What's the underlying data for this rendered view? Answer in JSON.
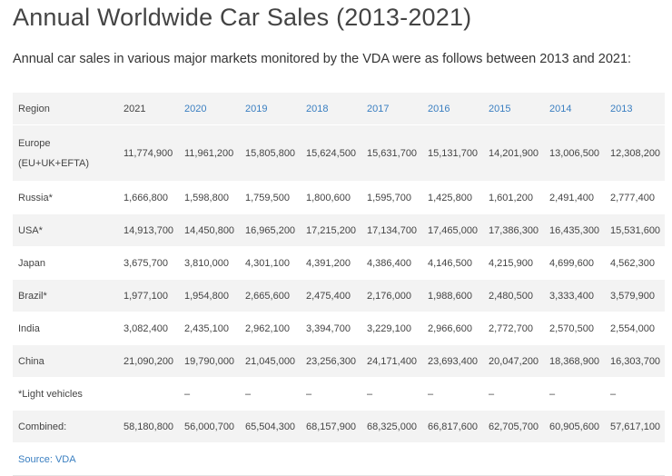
{
  "title": "Annual Worldwide Car Sales (2013-2021)",
  "intro": "Annual car sales in various major markets monitored by the VDA were as follows between 2013 and 2021:",
  "table": {
    "headers": [
      "Region",
      "2021",
      "2020",
      "2019",
      "2018",
      "2017",
      "2016",
      "2015",
      "2014",
      "2013"
    ],
    "rows": [
      {
        "region": "Europe (EU+UK+EFTA)",
        "values": [
          "11,774,900",
          "11,961,200",
          "15,805,800",
          "15,624,500",
          "15,631,700",
          "15,131,700",
          "14,201,900",
          "13,006,500",
          "12,308,200"
        ]
      },
      {
        "region": "Russia*",
        "values": [
          "1,666,800",
          "1,598,800",
          "1,759,500",
          "1,800,600",
          "1,595,700",
          "1,425,800",
          "1,601,200",
          "2,491,400",
          "2,777,400"
        ]
      },
      {
        "region": "USA*",
        "values": [
          "14,913,700",
          "14,450,800",
          "16,965,200",
          "17,215,200",
          "17,134,700",
          "17,465,000",
          "17,386,300",
          "16,435,300",
          "15,531,600"
        ]
      },
      {
        "region": "Japan",
        "values": [
          "3,675,700",
          "3,810,000",
          "4,301,100",
          "4,391,200",
          "4,386,400",
          "4,146,500",
          "4,215,900",
          "4,699,600",
          "4,562,300"
        ]
      },
      {
        "region": "Brazil*",
        "values": [
          "1,977,100",
          "1,954,800",
          "2,665,600",
          "2,475,400",
          "2,176,000",
          "1,988,600",
          "2,480,500",
          "3,333,400",
          "3,579,900"
        ]
      },
      {
        "region": "India",
        "values": [
          "3,082,400",
          "2,435,100",
          "2,962,100",
          "3,394,700",
          "3,229,100",
          "2,966,600",
          "2,772,700",
          "2,570,500",
          "2,554,000"
        ]
      },
      {
        "region": "China",
        "values": [
          "21,090,200",
          "19,790,000",
          "21,045,000",
          "23,256,300",
          "24,171,400",
          "23,693,400",
          "20,047,200",
          "18,368,900",
          "16,303,700"
        ]
      },
      {
        "region": "*Light vehicles",
        "values": [
          "",
          "–",
          "–",
          "–",
          "–",
          "–",
          "–",
          "–",
          "–"
        ]
      },
      {
        "region": "Combined:",
        "values": [
          "58,180,800",
          "56,000,700",
          "65,504,300",
          "68,157,900",
          "68,325,000",
          "66,817,600",
          "62,705,700",
          "60,905,600",
          "57,617,100"
        ]
      }
    ],
    "source": "Source: VDA"
  }
}
